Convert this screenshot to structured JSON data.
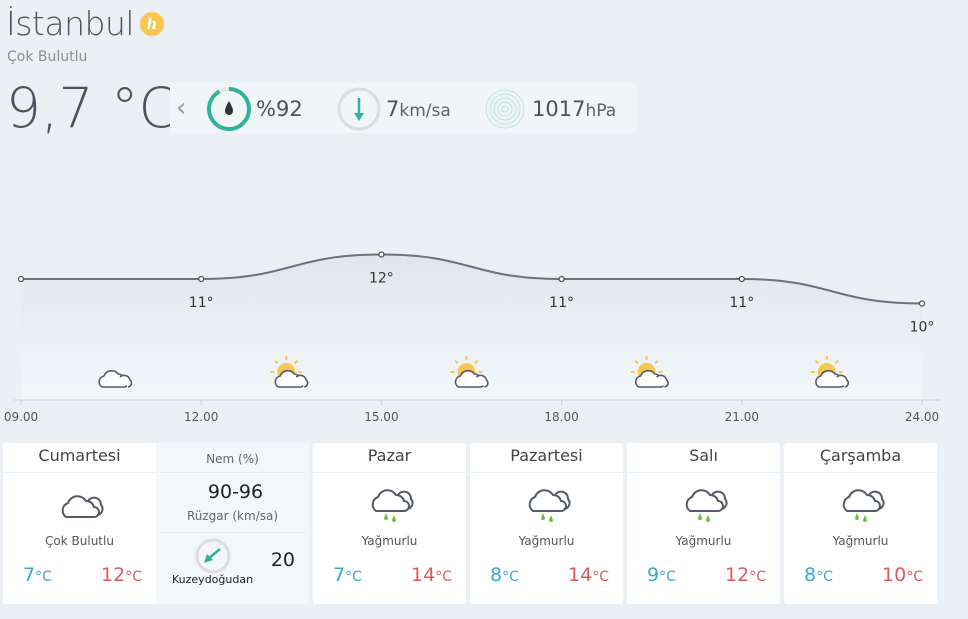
{
  "header": {
    "city": "İstanbul",
    "badge": "h",
    "condition": "Çok Bulutlu",
    "temperature": "9,7 °C"
  },
  "stats": {
    "humidity": "%92",
    "humidity_fraction": 0.92,
    "wind_value": "7",
    "wind_unit": "km/sa",
    "pressure_value": "1017",
    "pressure_unit": "hPa"
  },
  "colors": {
    "accent": "#2fb39a",
    "low": "#3aa8c8",
    "high": "#e0575a"
  },
  "chart_data": {
    "type": "line",
    "x": [
      "09.00",
      "12.00",
      "15.00",
      "18.00",
      "21.00",
      "24.00"
    ],
    "values": [
      11,
      11,
      12,
      11,
      11,
      10
    ],
    "labels": [
      "",
      "11°",
      "12°",
      "11°",
      "11°",
      "10°"
    ],
    "icons": [
      "cloudy",
      "partly-sunny",
      "partly-sunny",
      "partly-sunny",
      "partly-sunny"
    ]
  },
  "days": [
    {
      "name": "Cumartesi",
      "desc": "Çok Bulutlu",
      "low": "7",
      "high": "12",
      "unit": "°C",
      "icon": "cloudy"
    },
    {
      "name": "Pazar",
      "desc": "Yağmurlu",
      "low": "7",
      "high": "14",
      "unit": "°C",
      "icon": "rain"
    },
    {
      "name": "Pazartesi",
      "desc": "Yağmurlu",
      "low": "8",
      "high": "14",
      "unit": "°C",
      "icon": "rain"
    },
    {
      "name": "Salı",
      "desc": "Yağmurlu",
      "low": "9",
      "high": "12",
      "unit": "°C",
      "icon": "rain"
    },
    {
      "name": "Çarşamba",
      "desc": "Yağmurlu",
      "low": "8",
      "high": "10",
      "unit": "°C",
      "icon": "rain"
    }
  ],
  "detail": {
    "humidity_label": "Nem (%)",
    "humidity_value": "90-96",
    "wind_label": "Rüzgar (km/sa)",
    "wind_value": "20",
    "wind_dir": "Kuzeydoğudan"
  }
}
